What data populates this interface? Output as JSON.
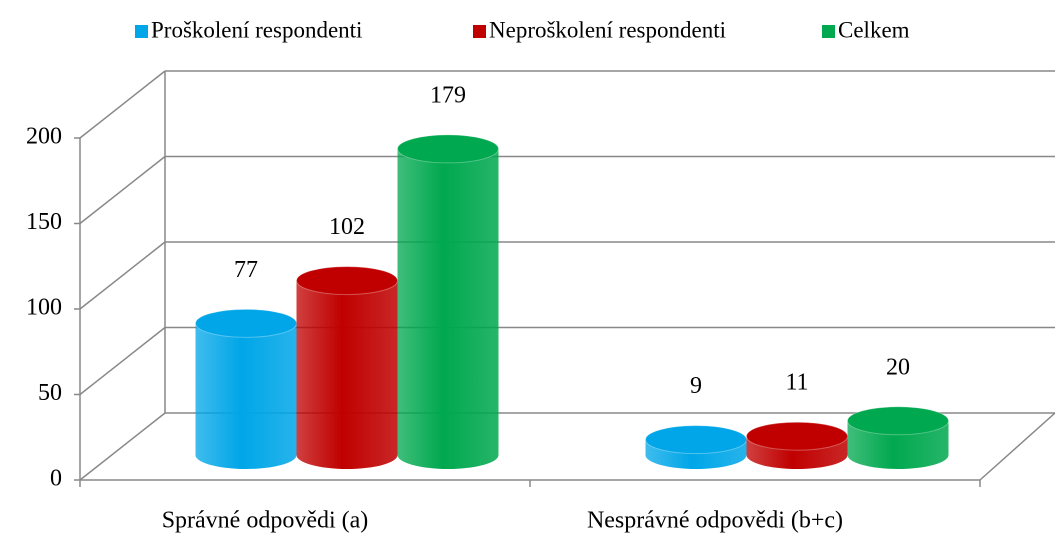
{
  "chart_data": {
    "type": "bar3d",
    "categories": [
      "Správné odpovědi (a)",
      "Nesprávné odpovědi (b+c)"
    ],
    "series": [
      {
        "name": "Proškolení respondenti",
        "color": "#00a6e8",
        "values": [
          77,
          9
        ]
      },
      {
        "name": "Neproškolení respondenti",
        "color": "#c00000",
        "values": [
          102,
          11
        ]
      },
      {
        "name": "Celkem",
        "color": "#00a84f",
        "values": [
          179,
          20
        ]
      }
    ],
    "ylim": [
      0,
      200
    ],
    "yticks": [
      0,
      50,
      100,
      150,
      200
    ],
    "grid": true,
    "legend": "top"
  }
}
